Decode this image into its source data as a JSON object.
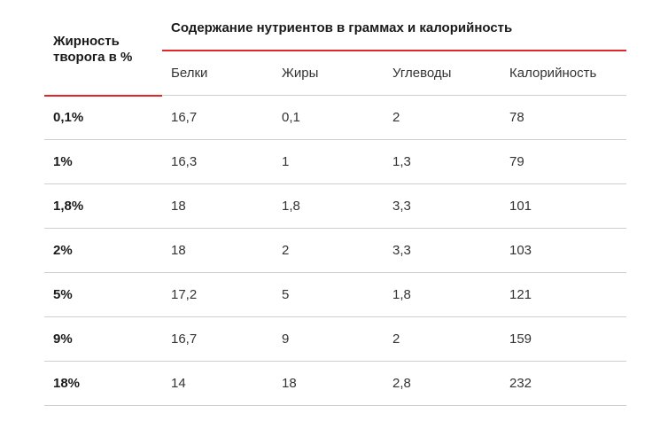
{
  "table": {
    "corner_header": "Жирность творога в %",
    "group_header": "Содержание нутриентов в граммах и калорийность",
    "columns": [
      "Белки",
      "Жиры",
      "Углеводы",
      "Калорийность"
    ],
    "rows": [
      {
        "fat": "0,1%",
        "protein": "16,7",
        "fats": "0,1",
        "carbs": "2",
        "kcal": "78"
      },
      {
        "fat": "1%",
        "protein": "16,3",
        "fats": "1",
        "carbs": "1,3",
        "kcal": "79"
      },
      {
        "fat": "1,8%",
        "protein": "18",
        "fats": "1,8",
        "carbs": "3,3",
        "kcal": "101"
      },
      {
        "fat": "2%",
        "protein": "18",
        "fats": "2",
        "carbs": "3,3",
        "kcal": "103"
      },
      {
        "fat": "5%",
        "protein": "17,2",
        "fats": "5",
        "carbs": "1,8",
        "kcal": "121"
      },
      {
        "fat": "9%",
        "protein": "16,7",
        "fats": "9",
        "carbs": "2",
        "kcal": "159"
      },
      {
        "fat": "18%",
        "protein": "14",
        "fats": "18",
        "carbs": "2,8",
        "kcal": "232"
      }
    ]
  },
  "colors": {
    "accent": "#e0262b",
    "divider": "#cfcfcf",
    "text": "#1a1a1a"
  }
}
